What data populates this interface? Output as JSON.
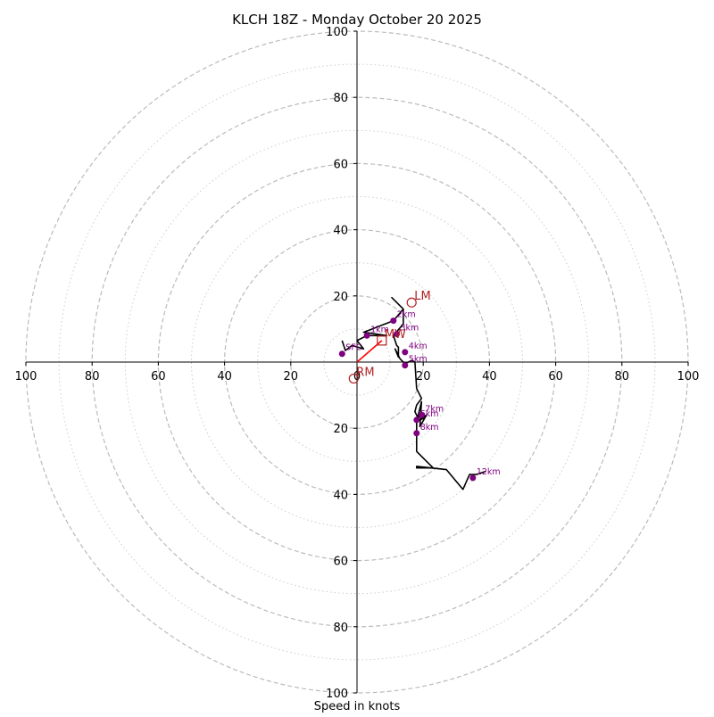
{
  "chart_data": {
    "type": "hodograph",
    "title": "KLCH 18Z - Monday October 20 2025",
    "xlabel": "Speed in knots",
    "axis_range": [
      -100,
      100
    ],
    "rings_major": [
      20,
      40,
      60,
      80,
      100
    ],
    "rings_minor": [
      10,
      30,
      50,
      70,
      90
    ],
    "x_tick_labels": [
      "100",
      "80",
      "60",
      "40",
      "20",
      "0",
      "20",
      "40",
      "60",
      "80",
      "100"
    ],
    "y_tick_labels": [
      "100",
      "80",
      "60",
      "40",
      "20",
      "20",
      "40",
      "60",
      "80",
      "100"
    ],
    "trace_units": "knots (u east, v north)",
    "trace": [
      [
        -4.5,
        6.5
      ],
      [
        -3.5,
        3.5
      ],
      [
        -1.5,
        5
      ],
      [
        2,
        4
      ],
      [
        0,
        6.5
      ],
      [
        3,
        8
      ],
      [
        9,
        8
      ],
      [
        2,
        9
      ],
      [
        11,
        12.5
      ],
      [
        14,
        16
      ],
      [
        10.5,
        19.5
      ],
      [
        14,
        16
      ],
      [
        14,
        11.5
      ],
      [
        11,
        8
      ],
      [
        12,
        5
      ],
      [
        12.5,
        4.5
      ],
      [
        12.5,
        1.5
      ],
      [
        11.5,
        4
      ],
      [
        13,
        1
      ],
      [
        14.5,
        -0.5
      ],
      [
        16.5,
        0.5
      ],
      [
        17.5,
        0
      ],
      [
        18,
        -8
      ],
      [
        19.5,
        -11
      ],
      [
        18,
        -13
      ],
      [
        17.5,
        -15
      ],
      [
        18.5,
        -17
      ],
      [
        19,
        -16
      ],
      [
        20,
        -17
      ],
      [
        18,
        -18
      ],
      [
        19.5,
        -12
      ],
      [
        19,
        -19.5
      ],
      [
        21,
        -16
      ],
      [
        18,
        -18
      ],
      [
        18,
        -20
      ],
      [
        18,
        -22
      ],
      [
        18,
        -27
      ],
      [
        21,
        -30
      ],
      [
        23,
        -32
      ],
      [
        18,
        -32
      ],
      [
        18,
        -31.5
      ],
      [
        27,
        -32.5
      ],
      [
        32,
        -38.5
      ],
      [
        34,
        -34
      ],
      [
        36,
        -34
      ],
      [
        39,
        -33
      ]
    ],
    "height_markers": [
      {
        "label": "SFC",
        "u": -4.5,
        "v": 2.5
      },
      {
        "label": "1km",
        "u": 3,
        "v": 8
      },
      {
        "label": "2km",
        "u": 11,
        "v": 12.5
      },
      {
        "label": "3km",
        "u": 12,
        "v": 8.5
      },
      {
        "label": "4km",
        "u": 14.5,
        "v": 3
      },
      {
        "label": "5km",
        "u": 14.5,
        "v": -1
      },
      {
        "label": "6km",
        "u": 18,
        "v": -17.5
      },
      {
        "label": "7km",
        "u": 19.5,
        "v": -16
      },
      {
        "label": "8km",
        "u": 18,
        "v": -21.5
      },
      {
        "label": "12km",
        "u": 35,
        "v": -35
      }
    ],
    "storm_motions": [
      {
        "label": "LM",
        "u": 16.5,
        "v": 18,
        "marker": "circle"
      },
      {
        "label": "RM",
        "u": -1,
        "v": -5,
        "marker": "circle"
      },
      {
        "label": "MW",
        "u": 7.5,
        "v": 6.5,
        "marker": "square"
      }
    ],
    "shear_vector": {
      "from": [
        0,
        0
      ],
      "to": [
        7.5,
        6.5
      ]
    },
    "colors": {
      "trace": "#000000",
      "markers": "#800080",
      "storm_motion": "#b22222",
      "shear_vector": "#ff0000",
      "major_ring": "#bbbbbb",
      "minor_ring": "#cccccc"
    }
  }
}
